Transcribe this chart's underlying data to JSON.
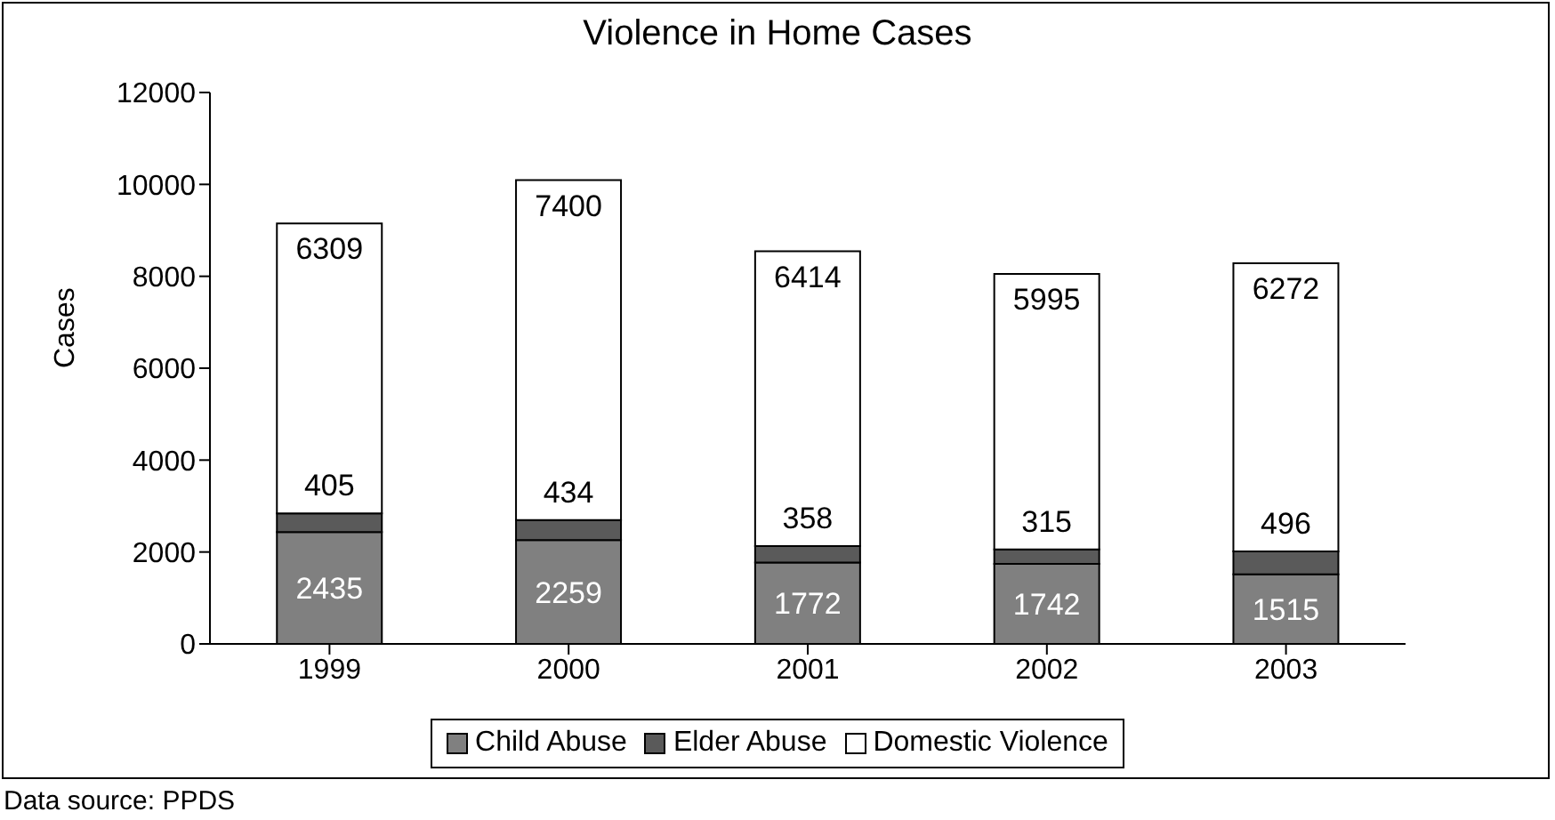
{
  "chart_data": {
    "type": "bar",
    "title": "Violence in Home Cases",
    "ylabel": "Cases",
    "categories": [
      "1999",
      "2000",
      "2001",
      "2002",
      "2003"
    ],
    "stacked": true,
    "data_labels": true,
    "legend": "bottom",
    "grid": false,
    "series": [
      {
        "name": "Child Abuse",
        "color": "#808080",
        "values": [
          2435,
          2259,
          1772,
          1742,
          1515
        ]
      },
      {
        "name": "Elder Abuse",
        "color": "#5a5a5a",
        "values": [
          405,
          434,
          358,
          315,
          496
        ]
      },
      {
        "name": "Domestic Violence",
        "color": "#ffffff",
        "values": [
          6309,
          7400,
          6414,
          5995,
          6272
        ]
      }
    ],
    "ylim": [
      0,
      12000
    ],
    "yticks": [
      0,
      2000,
      4000,
      6000,
      8000,
      10000,
      12000
    ],
    "annotations": [
      "Data source: PPDS"
    ]
  }
}
